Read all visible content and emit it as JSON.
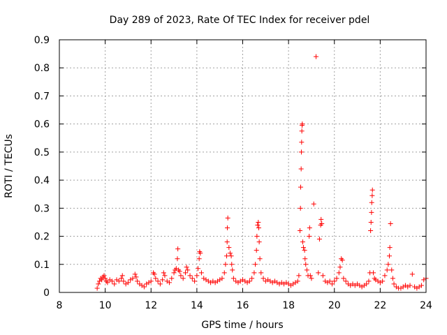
{
  "chart_data": {
    "type": "scatter",
    "title": "Day 289 of 2023, Rate Of TEC Index for receiver pdel",
    "xlabel": "GPS time / hours",
    "ylabel": "ROTI / TECUs",
    "xlim": [
      8,
      24
    ],
    "ylim": [
      0,
      0.9
    ],
    "x_ticks": [
      "8",
      "10",
      "12",
      "14",
      "16",
      "18",
      "20",
      "22",
      "24"
    ],
    "y_ticks": [
      "0",
      "0.1",
      "0.2",
      "0.3",
      "0.4",
      "0.5",
      "0.6",
      "0.7",
      "0.8",
      "0.9"
    ],
    "grid": true,
    "marker": "+",
    "color": "#ff0000",
    "series": [
      {
        "name": "ROTI",
        "points": [
          [
            9.65,
            0.015
          ],
          [
            9.7,
            0.03
          ],
          [
            9.75,
            0.04
          ],
          [
            9.8,
            0.05
          ],
          [
            9.85,
            0.045
          ],
          [
            9.9,
            0.055
          ],
          [
            9.95,
            0.06
          ],
          [
            10.0,
            0.05
          ],
          [
            10.05,
            0.04
          ],
          [
            10.1,
            0.035
          ],
          [
            10.2,
            0.045
          ],
          [
            10.3,
            0.04
          ],
          [
            10.4,
            0.03
          ],
          [
            10.5,
            0.045
          ],
          [
            10.6,
            0.04
          ],
          [
            10.7,
            0.05
          ],
          [
            10.75,
            0.06
          ],
          [
            10.8,
            0.04
          ],
          [
            10.9,
            0.03
          ],
          [
            11.0,
            0.035
          ],
          [
            11.1,
            0.045
          ],
          [
            11.2,
            0.05
          ],
          [
            11.3,
            0.065
          ],
          [
            11.35,
            0.055
          ],
          [
            11.4,
            0.04
          ],
          [
            11.5,
            0.03
          ],
          [
            11.6,
            0.025
          ],
          [
            11.7,
            0.02
          ],
          [
            11.8,
            0.03
          ],
          [
            11.9,
            0.035
          ],
          [
            12.0,
            0.04
          ],
          [
            12.1,
            0.07
          ],
          [
            12.15,
            0.065
          ],
          [
            12.2,
            0.05
          ],
          [
            12.3,
            0.04
          ],
          [
            12.4,
            0.03
          ],
          [
            12.5,
            0.045
          ],
          [
            12.55,
            0.07
          ],
          [
            12.6,
            0.06
          ],
          [
            12.7,
            0.04
          ],
          [
            12.8,
            0.035
          ],
          [
            12.9,
            0.05
          ],
          [
            13.0,
            0.07
          ],
          [
            13.05,
            0.08
          ],
          [
            13.1,
            0.085
          ],
          [
            13.15,
            0.12
          ],
          [
            13.17,
            0.155
          ],
          [
            13.2,
            0.08
          ],
          [
            13.25,
            0.075
          ],
          [
            13.3,
            0.06
          ],
          [
            13.4,
            0.05
          ],
          [
            13.5,
            0.07
          ],
          [
            13.55,
            0.09
          ],
          [
            13.6,
            0.08
          ],
          [
            13.7,
            0.06
          ],
          [
            13.8,
            0.05
          ],
          [
            13.9,
            0.04
          ],
          [
            14.0,
            0.06
          ],
          [
            14.05,
            0.085
          ],
          [
            14.1,
            0.12
          ],
          [
            14.12,
            0.145
          ],
          [
            14.15,
            0.14
          ],
          [
            14.2,
            0.07
          ],
          [
            14.3,
            0.05
          ],
          [
            14.4,
            0.045
          ],
          [
            14.5,
            0.04
          ],
          [
            14.6,
            0.035
          ],
          [
            14.7,
            0.04
          ],
          [
            14.8,
            0.035
          ],
          [
            14.9,
            0.04
          ],
          [
            15.0,
            0.045
          ],
          [
            15.1,
            0.05
          ],
          [
            15.2,
            0.07
          ],
          [
            15.25,
            0.1
          ],
          [
            15.3,
            0.13
          ],
          [
            15.32,
            0.18
          ],
          [
            15.33,
            0.23
          ],
          [
            15.35,
            0.265
          ],
          [
            15.4,
            0.16
          ],
          [
            15.45,
            0.14
          ],
          [
            15.5,
            0.13
          ],
          [
            15.52,
            0.1
          ],
          [
            15.55,
            0.08
          ],
          [
            15.6,
            0.05
          ],
          [
            15.7,
            0.04
          ],
          [
            15.8,
            0.035
          ],
          [
            15.9,
            0.04
          ],
          [
            16.0,
            0.045
          ],
          [
            16.1,
            0.04
          ],
          [
            16.2,
            0.035
          ],
          [
            16.3,
            0.04
          ],
          [
            16.4,
            0.05
          ],
          [
            16.5,
            0.07
          ],
          [
            16.55,
            0.1
          ],
          [
            16.6,
            0.15
          ],
          [
            16.62,
            0.2
          ],
          [
            16.65,
            0.24
          ],
          [
            16.68,
            0.25
          ],
          [
            16.7,
            0.23
          ],
          [
            16.72,
            0.18
          ],
          [
            16.75,
            0.12
          ],
          [
            16.8,
            0.07
          ],
          [
            16.9,
            0.05
          ],
          [
            17.0,
            0.04
          ],
          [
            17.1,
            0.045
          ],
          [
            17.2,
            0.04
          ],
          [
            17.3,
            0.035
          ],
          [
            17.4,
            0.04
          ],
          [
            17.5,
            0.035
          ],
          [
            17.6,
            0.03
          ],
          [
            17.7,
            0.035
          ],
          [
            17.8,
            0.03
          ],
          [
            17.9,
            0.035
          ],
          [
            18.0,
            0.03
          ],
          [
            18.1,
            0.025
          ],
          [
            18.2,
            0.03
          ],
          [
            18.3,
            0.035
          ],
          [
            18.4,
            0.04
          ],
          [
            18.45,
            0.06
          ],
          [
            18.5,
            0.22
          ],
          [
            18.52,
            0.3
          ],
          [
            18.53,
            0.375
          ],
          [
            18.55,
            0.44
          ],
          [
            18.56,
            0.5
          ],
          [
            18.57,
            0.535
          ],
          [
            18.58,
            0.575
          ],
          [
            18.59,
            0.595
          ],
          [
            18.6,
            0.6
          ],
          [
            18.62,
            0.18
          ],
          [
            18.65,
            0.16
          ],
          [
            18.7,
            0.15
          ],
          [
            18.72,
            0.12
          ],
          [
            18.75,
            0.1
          ],
          [
            18.8,
            0.08
          ],
          [
            18.85,
            0.06
          ],
          [
            18.9,
            0.2
          ],
          [
            18.92,
            0.23
          ],
          [
            18.95,
            0.06
          ],
          [
            19.0,
            0.05
          ],
          [
            19.1,
            0.315
          ],
          [
            19.2,
            0.84
          ],
          [
            19.3,
            0.07
          ],
          [
            19.35,
            0.19
          ],
          [
            19.4,
            0.24
          ],
          [
            19.42,
            0.26
          ],
          [
            19.45,
            0.245
          ],
          [
            19.5,
            0.06
          ],
          [
            19.6,
            0.04
          ],
          [
            19.7,
            0.035
          ],
          [
            19.8,
            0.04
          ],
          [
            19.9,
            0.03
          ],
          [
            20.0,
            0.04
          ],
          [
            20.1,
            0.05
          ],
          [
            20.2,
            0.07
          ],
          [
            20.25,
            0.09
          ],
          [
            20.3,
            0.12
          ],
          [
            20.35,
            0.115
          ],
          [
            20.4,
            0.05
          ],
          [
            20.5,
            0.04
          ],
          [
            20.6,
            0.03
          ],
          [
            20.7,
            0.025
          ],
          [
            20.8,
            0.03
          ],
          [
            20.9,
            0.025
          ],
          [
            21.0,
            0.03
          ],
          [
            21.1,
            0.025
          ],
          [
            21.2,
            0.02
          ],
          [
            21.3,
            0.025
          ],
          [
            21.4,
            0.03
          ],
          [
            21.5,
            0.04
          ],
          [
            21.55,
            0.07
          ],
          [
            21.58,
            0.22
          ],
          [
            21.6,
            0.25
          ],
          [
            21.62,
            0.285
          ],
          [
            21.63,
            0.32
          ],
          [
            21.65,
            0.345
          ],
          [
            21.66,
            0.365
          ],
          [
            21.7,
            0.07
          ],
          [
            21.75,
            0.05
          ],
          [
            21.8,
            0.045
          ],
          [
            21.9,
            0.04
          ],
          [
            22.0,
            0.035
          ],
          [
            22.1,
            0.04
          ],
          [
            22.2,
            0.06
          ],
          [
            22.3,
            0.08
          ],
          [
            22.35,
            0.1
          ],
          [
            22.4,
            0.13
          ],
          [
            22.42,
            0.16
          ],
          [
            22.45,
            0.245
          ],
          [
            22.5,
            0.08
          ],
          [
            22.55,
            0.05
          ],
          [
            22.6,
            0.03
          ],
          [
            22.7,
            0.02
          ],
          [
            22.8,
            0.015
          ],
          [
            22.9,
            0.015
          ],
          [
            23.0,
            0.02
          ],
          [
            23.1,
            0.025
          ],
          [
            23.2,
            0.02
          ],
          [
            23.3,
            0.025
          ],
          [
            23.4,
            0.065
          ],
          [
            23.5,
            0.02
          ],
          [
            23.6,
            0.015
          ],
          [
            23.7,
            0.02
          ],
          [
            23.8,
            0.025
          ],
          [
            23.9,
            0.045
          ],
          [
            24.0,
            0.05
          ]
        ]
      }
    ]
  }
}
